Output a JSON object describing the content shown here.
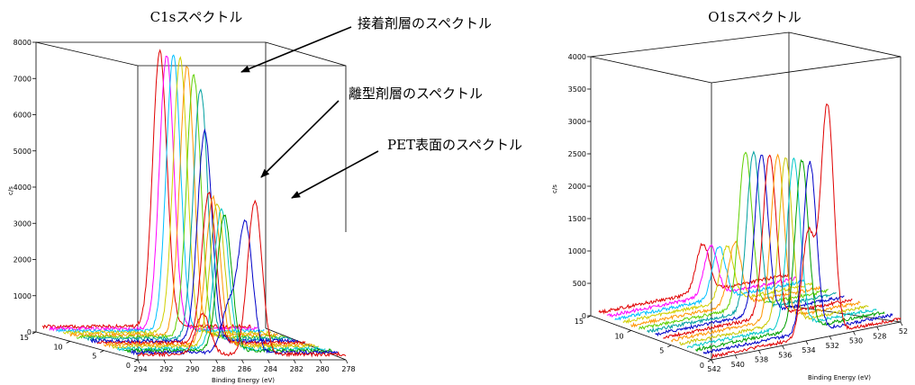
{
  "chart_data": [
    {
      "type": "line",
      "title": "C1sスペクトル",
      "xlabel": "Binding Energy (eV)",
      "ylabel": "c/s",
      "x_ticks": [
        "294",
        "292",
        "290",
        "288",
        "286",
        "284",
        "282",
        "280",
        "278"
      ],
      "y_ticks": [
        "0",
        "1000",
        "2000",
        "3000",
        "4000",
        "5000",
        "6000",
        "7000",
        "8000"
      ],
      "z_ticks": [
        "15",
        "10",
        "5",
        "0"
      ],
      "xlim": [
        294,
        278
      ],
      "ylim": [
        0,
        8000
      ],
      "zlim": [
        0,
        15
      ],
      "annotations": [
        "接着剤層のスペクトル",
        "離型剤層のスペクトル",
        "PET表面のスペクトル"
      ],
      "series": [
        {
          "depth": 0,
          "color": "#e00000",
          "peaks": [
            {
              "energy": 289.0,
              "height": 1100
            },
            {
              "energy": 285.0,
              "height": 4150
            }
          ],
          "baseline": 150
        },
        {
          "depth": 1,
          "color": "#0000c8",
          "peaks": [
            {
              "energy": 286.5,
              "height": 1200
            },
            {
              "energy": 285.2,
              "height": 3500
            }
          ],
          "baseline": 150
        },
        {
          "depth": 2,
          "color": "#00a000",
          "peaks": [
            {
              "energy": 286.3,
              "height": 3700
            }
          ],
          "baseline": 150
        },
        {
          "depth": 3,
          "color": "#00c8c8",
          "peaks": [
            {
              "energy": 286.0,
              "height": 3800
            }
          ],
          "baseline": 150
        },
        {
          "depth": 4,
          "color": "#c8c800",
          "peaks": [
            {
              "energy": 285.8,
              "height": 3900
            }
          ],
          "baseline": 160
        },
        {
          "depth": 5,
          "color": "#ff9600",
          "peaks": [
            {
              "energy": 285.6,
              "height": 4000
            }
          ],
          "baseline": 160
        },
        {
          "depth": 6,
          "color": "#e00000",
          "peaks": [
            {
              "energy": 285.4,
              "height": 4100
            }
          ],
          "baseline": 160
        },
        {
          "depth": 7,
          "color": "#0000c8",
          "peaks": [
            {
              "energy": 285.2,
              "height": 5700
            }
          ],
          "baseline": 160
        },
        {
          "depth": 8,
          "color": "#00a0a0",
          "peaks": [
            {
              "energy": 285.0,
              "height": 6800
            }
          ],
          "baseline": 170
        },
        {
          "depth": 9,
          "color": "#60d000",
          "peaks": [
            {
              "energy": 285.0,
              "height": 7100
            }
          ],
          "baseline": 170
        },
        {
          "depth": 10,
          "color": "#ff9600",
          "peaks": [
            {
              "energy": 285.0,
              "height": 7300
            }
          ],
          "baseline": 170
        },
        {
          "depth": 11,
          "color": "#d0d000",
          "peaks": [
            {
              "energy": 285.0,
              "height": 7450
            }
          ],
          "baseline": 180
        },
        {
          "depth": 12,
          "color": "#00c0ff",
          "peaks": [
            {
              "energy": 285.0,
              "height": 7500
            }
          ],
          "baseline": 180
        },
        {
          "depth": 13,
          "color": "#ff00ff",
          "peaks": [
            {
              "energy": 285.0,
              "height": 7450
            }
          ],
          "baseline": 190
        },
        {
          "depth": 14,
          "color": "#e00000",
          "peaks": [
            {
              "energy": 285.0,
              "height": 7500
            }
          ],
          "baseline": 200
        }
      ]
    },
    {
      "type": "line",
      "title": "O1sスペクトル",
      "xlabel": "Binding Energy (eV)",
      "ylabel": "c/s",
      "x_ticks": [
        "542",
        "540",
        "538",
        "536",
        "534",
        "532",
        "530",
        "528",
        "52"
      ],
      "y_ticks": [
        "0",
        "500",
        "1000",
        "1500",
        "2000",
        "2500",
        "3000",
        "3500",
        "4000"
      ],
      "z_ticks": [
        "15",
        "10",
        "5",
        "0"
      ],
      "xlim": [
        542,
        526
      ],
      "ylim": [
        0,
        4000
      ],
      "zlim": [
        0,
        15
      ],
      "series": [
        {
          "depth": 0,
          "color": "#e00000",
          "peaks": [
            {
              "energy": 533.8,
              "height": 1500
            },
            {
              "energy": 532.2,
              "height": 3300
            }
          ],
          "baseline": 50
        },
        {
          "depth": 1,
          "color": "#0000c8",
          "peaks": [
            {
              "energy": 533.0,
              "height": 2450
            }
          ],
          "baseline": 60
        },
        {
          "depth": 2,
          "color": "#00a000",
          "peaks": [
            {
              "energy": 533.0,
              "height": 2420
            }
          ],
          "baseline": 60
        },
        {
          "depth": 3,
          "color": "#00c8c8",
          "peaks": [
            {
              "energy": 533.0,
              "height": 2400
            }
          ],
          "baseline": 60
        },
        {
          "depth": 4,
          "color": "#c8c800",
          "peaks": [
            {
              "energy": 533.0,
              "height": 2380
            }
          ],
          "baseline": 60
        },
        {
          "depth": 5,
          "color": "#ff9600",
          "peaks": [
            {
              "energy": 533.0,
              "height": 2350
            }
          ],
          "baseline": 70
        },
        {
          "depth": 6,
          "color": "#e00000",
          "peaks": [
            {
              "energy": 533.0,
              "height": 2320
            }
          ],
          "baseline": 70
        },
        {
          "depth": 7,
          "color": "#0000c8",
          "peaks": [
            {
              "energy": 533.0,
              "height": 2300
            }
          ],
          "baseline": 70
        },
        {
          "depth": 8,
          "color": "#00a0a0",
          "peaks": [
            {
              "energy": 533.0,
              "height": 2280
            }
          ],
          "baseline": 70
        },
        {
          "depth": 9,
          "color": "#60d000",
          "peaks": [
            {
              "energy": 533.0,
              "height": 2250
            }
          ],
          "baseline": 70
        },
        {
          "depth": 10,
          "color": "#ff9600",
          "peaks": [
            {
              "energy": 533.2,
              "height": 900
            }
          ],
          "baseline": 70
        },
        {
          "depth": 11,
          "color": "#d0d000",
          "peaks": [
            {
              "energy": 533.2,
              "height": 800
            }
          ],
          "baseline": 80
        },
        {
          "depth": 12,
          "color": "#00c0ff",
          "peaks": [
            {
              "energy": 533.2,
              "height": 750
            }
          ],
          "baseline": 80
        },
        {
          "depth": 13,
          "color": "#ff00ff",
          "peaks": [
            {
              "energy": 533.2,
              "height": 720
            }
          ],
          "baseline": 80
        },
        {
          "depth": 14,
          "color": "#e00000",
          "peaks": [
            {
              "energy": 533.2,
              "height": 700
            }
          ],
          "baseline": 90
        }
      ]
    }
  ]
}
